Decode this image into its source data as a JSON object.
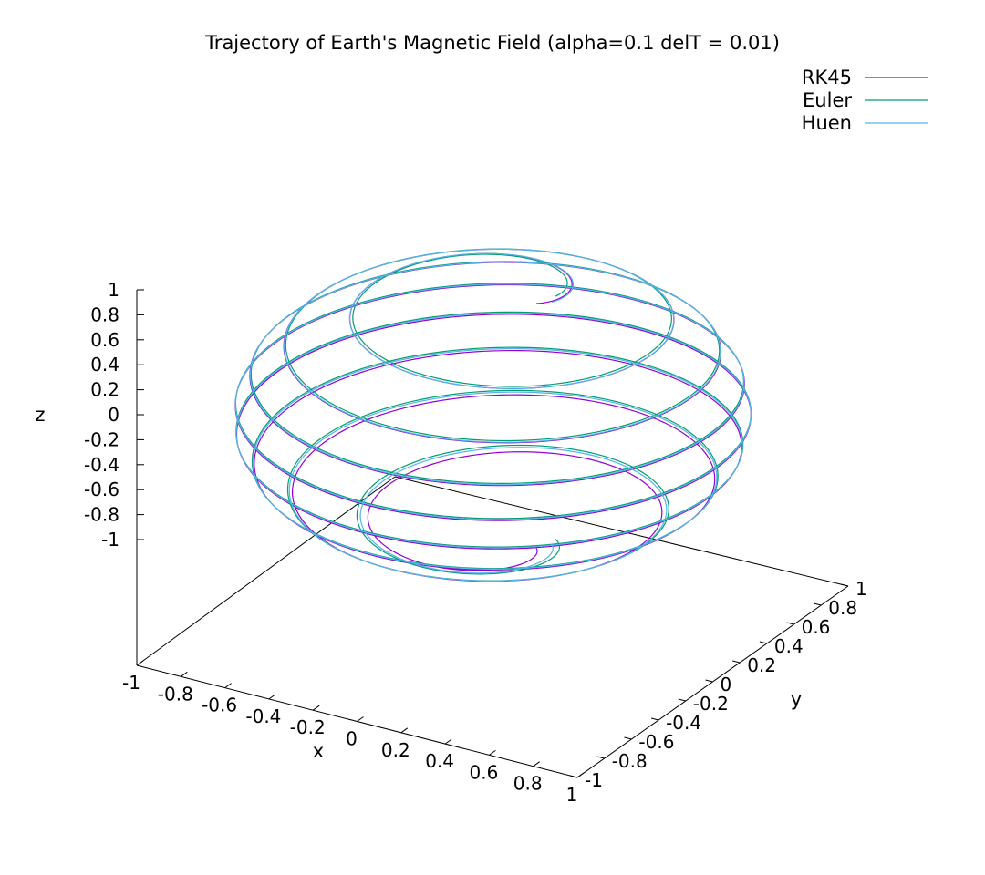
{
  "chart_data": {
    "type": "line",
    "projection": "3d",
    "title": "Trajectory of Earth's Magnetic Field (alpha=0.1 delT = 0.01)",
    "xlabel": "x",
    "ylabel": "y",
    "zlabel": "z",
    "xlim": [
      -1,
      1
    ],
    "ylim": [
      -1,
      1
    ],
    "zlim": [
      -1,
      1
    ],
    "x_ticks": [
      "-1",
      "-0.8",
      "-0.6",
      "-0.4",
      "-0.2",
      "0",
      "0.2",
      "0.4",
      "0.6",
      "0.8",
      "1"
    ],
    "y_ticks": [
      "-1",
      "-0.8",
      "-0.6",
      "-0.4",
      "-0.2",
      "0",
      "0.2",
      "0.4",
      "0.6",
      "0.8",
      "1"
    ],
    "z_ticks": [
      "1",
      "0.8",
      "0.6",
      "0.4",
      "0.2",
      "0",
      "-0.2",
      "-0.4",
      "-0.6",
      "-0.8",
      "-1"
    ],
    "grid": false,
    "legend_position": "top-right",
    "series": [
      {
        "name": "RK45",
        "color": "#9400d3",
        "z_start": 0.98,
        "z_end": -0.98,
        "turns": 8,
        "phase_deg": 0
      },
      {
        "name": "Euler",
        "color": "#009e73",
        "z_start": 0.97,
        "z_end": -0.97,
        "turns": 8,
        "phase_deg": 24
      },
      {
        "name": "Huen",
        "color": "#56b4e9",
        "z_start": 0.97,
        "z_end": -0.97,
        "turns": 8,
        "phase_deg": 12
      }
    ]
  }
}
